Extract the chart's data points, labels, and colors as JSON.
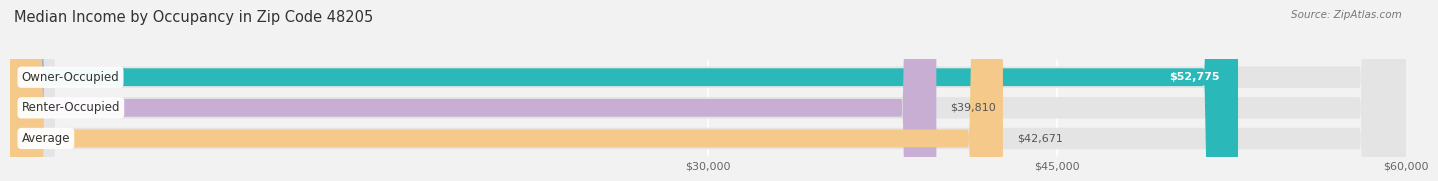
{
  "title": "Median Income by Occupancy in Zip Code 48205",
  "source": "Source: ZipAtlas.com",
  "categories": [
    "Owner-Occupied",
    "Renter-Occupied",
    "Average"
  ],
  "values": [
    52775,
    39810,
    42671
  ],
  "bar_colors": [
    "#2ab8b8",
    "#c9aed4",
    "#f5c98a"
  ],
  "value_labels": [
    "$52,775",
    "$39,810",
    "$42,671"
  ],
  "xlim_min": 0,
  "xlim_max": 60000,
  "xticks": [
    30000,
    45000,
    60000
  ],
  "xtick_labels": [
    "$30,000",
    "$45,000",
    "$60,000"
  ],
  "bar_height": 0.58,
  "bg_color": "#f2f2f2",
  "bar_bg_color": "#e4e4e4",
  "title_fontsize": 10.5,
  "label_fontsize": 8.5,
  "value_fontsize": 8.0,
  "source_fontsize": 7.5
}
